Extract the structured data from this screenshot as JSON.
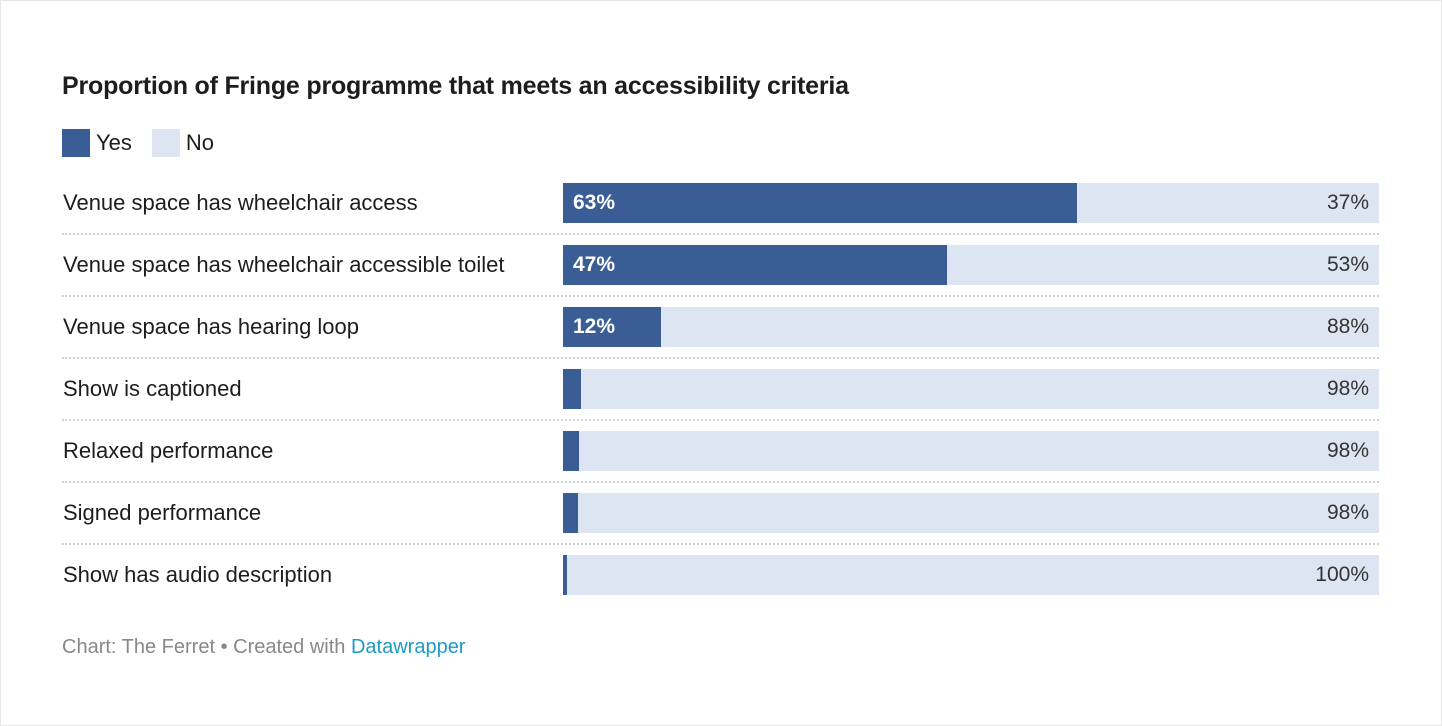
{
  "chart_data": {
    "type": "bar",
    "stacked": true,
    "orientation": "horizontal",
    "title": "Proportion of Fringe programme that meets an accessibility criteria",
    "legend": {
      "placement": "top-left",
      "entries": [
        "Yes",
        "No"
      ]
    },
    "categories": [
      "Venue space has wheelchair access",
      "Venue space has wheelchair accessible toilet",
      "Venue space has hearing loop",
      "Show is captioned",
      "Relaxed performance",
      "Signed performance",
      "Show has audio description"
    ],
    "series": [
      {
        "name": "Yes",
        "color": "#3a5d96",
        "values": [
          63,
          47,
          12,
          2.2,
          2.0,
          1.8,
          0.5
        ],
        "labels": [
          "63%",
          "47%",
          "12%",
          "",
          "",
          "",
          ""
        ]
      },
      {
        "name": "No",
        "color": "#dee5f2",
        "values": [
          37,
          53,
          88,
          97.8,
          98.0,
          98.2,
          99.5
        ],
        "labels": [
          "37%",
          "53%",
          "88%",
          "98%",
          "98%",
          "98%",
          "100%"
        ]
      }
    ],
    "xlim": [
      0,
      100
    ],
    "grid": false
  },
  "footer": {
    "source": "Chart: The Ferret • Created with ",
    "link": "Datawrapper"
  }
}
